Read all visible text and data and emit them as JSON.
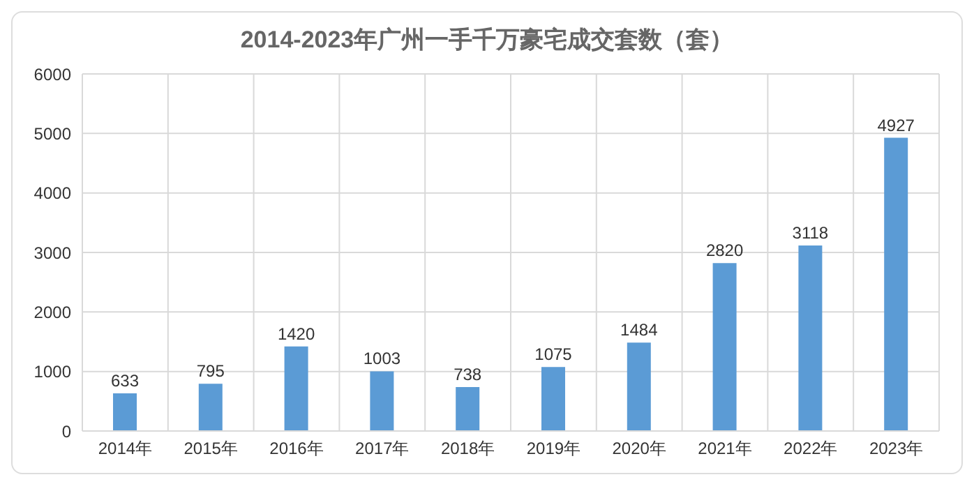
{
  "chart_data": {
    "type": "bar",
    "title": "2014-2023年广州一手千万豪宅成交套数（套）",
    "categories": [
      "2014年",
      "2015年",
      "2016年",
      "2017年",
      "2018年",
      "2019年",
      "2020年",
      "2021年",
      "2022年",
      "2023年"
    ],
    "values": [
      633,
      795,
      1420,
      1003,
      738,
      1075,
      1484,
      2820,
      3118,
      4927
    ],
    "color": "#5b9bd5",
    "ylim": [
      0,
      6000
    ],
    "yticks": [
      0,
      1000,
      2000,
      3000,
      4000,
      5000,
      6000
    ],
    "grid": true,
    "data_labels": true
  }
}
